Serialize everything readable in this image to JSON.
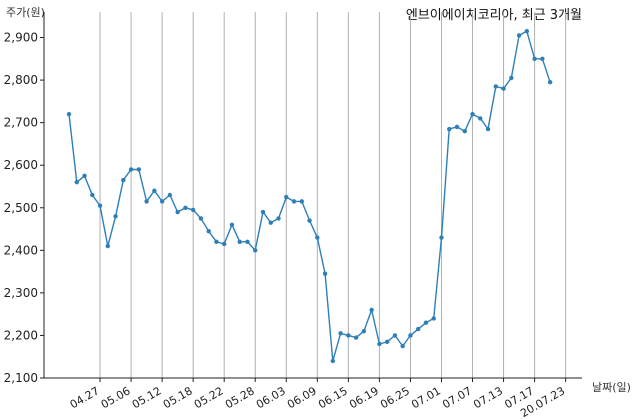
{
  "chart_data": {
    "type": "line",
    "title": "엔브이에이치코리아, 최근 3개월",
    "ylabel": "주가(원)",
    "xlabel": "날짜(일)",
    "ylim": [
      2100,
      2960
    ],
    "y_ticks": [
      2100,
      2200,
      2300,
      2400,
      2500,
      2600,
      2700,
      2800,
      2900
    ],
    "y_tick_labels": [
      "2,100",
      "2,200",
      "2,300",
      "2,400",
      "2,500",
      "2,600",
      "2,700",
      "2,800",
      "2,900"
    ],
    "x_ticks": [
      {
        "label": "04.27",
        "index": 4
      },
      {
        "label": "05.06",
        "index": 8
      },
      {
        "label": "05.12",
        "index": 12
      },
      {
        "label": "05.18",
        "index": 16
      },
      {
        "label": "05.22",
        "index": 20
      },
      {
        "label": "05.28",
        "index": 24
      },
      {
        "label": "06.03",
        "index": 28
      },
      {
        "label": "06.09",
        "index": 32
      },
      {
        "label": "06.15",
        "index": 36
      },
      {
        "label": "06.19",
        "index": 40
      },
      {
        "label": "06.25",
        "index": 44
      },
      {
        "label": "07.01",
        "index": 48
      },
      {
        "label": "07.07",
        "index": 52
      },
      {
        "label": "07.13",
        "index": 56
      },
      {
        "label": "07.17",
        "index": 60
      },
      {
        "label": "20.07.23",
        "index": 64
      }
    ],
    "grid": {
      "vertical": true,
      "horizontal": false
    },
    "series": [
      {
        "color": "#2e7fb8",
        "values": [
          2720,
          2560,
          2575,
          2530,
          2505,
          2410,
          2480,
          2565,
          2590,
          2590,
          2515,
          2540,
          2515,
          2530,
          2490,
          2500,
          2495,
          2475,
          2445,
          2420,
          2415,
          2460,
          2420,
          2420,
          2400,
          2490,
          2465,
          2475,
          2525,
          2515,
          2515,
          2470,
          2430,
          2345,
          2140,
          2205,
          2200,
          2195,
          2210,
          2260,
          2180,
          2185,
          2200,
          2175,
          2200,
          2215,
          2230,
          2240,
          2430,
          2685,
          2690,
          2680,
          2720,
          2710,
          2685,
          2785,
          2780,
          2805,
          2905,
          2915,
          2850,
          2850,
          2795
        ]
      }
    ]
  }
}
